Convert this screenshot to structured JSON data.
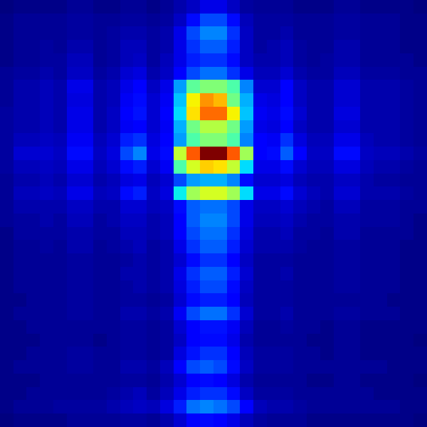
{
  "chart_data": {
    "type": "heatmap",
    "tick_labels": false,
    "cells": [
      [
        3,
        4,
        4,
        4,
        4,
        5,
        5,
        4,
        4,
        5,
        5,
        4,
        5,
        7,
        9,
        12,
        12,
        9,
        6,
        5,
        5,
        5,
        4,
        4,
        4,
        5,
        5,
        4,
        4,
        4,
        4,
        3
      ],
      [
        4,
        5,
        5,
        5,
        5,
        6,
        6,
        5,
        5,
        6,
        6,
        5,
        6,
        9,
        16,
        22,
        22,
        16,
        8,
        6,
        6,
        6,
        5,
        5,
        5,
        6,
        6,
        5,
        5,
        5,
        4,
        4
      ],
      [
        4,
        5,
        5,
        5,
        5,
        6,
        6,
        5,
        6,
        7,
        7,
        6,
        7,
        12,
        22,
        28,
        28,
        20,
        9,
        6,
        6,
        7,
        5,
        5,
        5,
        6,
        6,
        5,
        5,
        5,
        4,
        4
      ],
      [
        4,
        5,
        5,
        6,
        5,
        7,
        7,
        5,
        6,
        8,
        8,
        6,
        7,
        12,
        20,
        24,
        24,
        18,
        9,
        6,
        7,
        8,
        6,
        5,
        5,
        7,
        7,
        5,
        5,
        5,
        4,
        4
      ],
      [
        4,
        5,
        5,
        6,
        6,
        8,
        8,
        5,
        6,
        8,
        9,
        6,
        8,
        12,
        18,
        20,
        20,
        16,
        9,
        7,
        7,
        8,
        6,
        5,
        6,
        7,
        7,
        5,
        5,
        5,
        5,
        4
      ],
      [
        5,
        6,
        6,
        7,
        6,
        9,
        9,
        6,
        7,
        10,
        11,
        7,
        9,
        14,
        22,
        26,
        26,
        20,
        12,
        8,
        8,
        10,
        7,
        6,
        6,
        8,
        8,
        6,
        6,
        6,
        5,
        5
      ],
      [
        5,
        7,
        7,
        8,
        7,
        12,
        12,
        7,
        8,
        12,
        14,
        9,
        12,
        30,
        48,
        52,
        52,
        46,
        28,
        10,
        10,
        14,
        9,
        7,
        7,
        10,
        10,
        7,
        7,
        7,
        6,
        5
      ],
      [
        5,
        7,
        7,
        8,
        7,
        11,
        11,
        7,
        8,
        13,
        16,
        10,
        13,
        34,
        66,
        76,
        72,
        50,
        32,
        12,
        11,
        15,
        9,
        7,
        7,
        10,
        10,
        7,
        7,
        7,
        6,
        5
      ],
      [
        6,
        7,
        7,
        8,
        7,
        12,
        12,
        7,
        9,
        14,
        17,
        10,
        14,
        36,
        68,
        80,
        80,
        66,
        34,
        13,
        12,
        16,
        10,
        7,
        7,
        11,
        11,
        7,
        7,
        7,
        6,
        5
      ],
      [
        6,
        7,
        7,
        8,
        7,
        12,
        12,
        7,
        9,
        13,
        15,
        10,
        13,
        32,
        50,
        58,
        58,
        50,
        30,
        12,
        11,
        14,
        9,
        7,
        7,
        10,
        10,
        7,
        7,
        7,
        6,
        5
      ],
      [
        6,
        8,
        8,
        9,
        8,
        13,
        13,
        8,
        10,
        18,
        20,
        11,
        14,
        30,
        46,
        52,
        52,
        46,
        28,
        14,
        13,
        20,
        11,
        8,
        8,
        12,
        12,
        8,
        7,
        7,
        6,
        5
      ],
      [
        6,
        10,
        10,
        10,
        9,
        16,
        16,
        9,
        11,
        22,
        28,
        12,
        16,
        60,
        82,
        100,
        100,
        82,
        56,
        14,
        16,
        24,
        14,
        9,
        9,
        16,
        16,
        9,
        8,
        8,
        7,
        6
      ],
      [
        6,
        8,
        8,
        9,
        8,
        12,
        12,
        8,
        10,
        16,
        18,
        10,
        13,
        46,
        62,
        70,
        68,
        60,
        36,
        12,
        12,
        16,
        10,
        8,
        8,
        11,
        11,
        8,
        7,
        7,
        6,
        5
      ],
      [
        5,
        7,
        7,
        8,
        7,
        10,
        10,
        7,
        8,
        11,
        12,
        8,
        10,
        22,
        30,
        32,
        32,
        28,
        16,
        10,
        10,
        11,
        8,
        7,
        7,
        9,
        9,
        7,
        6,
        6,
        5,
        5
      ],
      [
        5,
        8,
        8,
        9,
        8,
        12,
        12,
        8,
        9,
        16,
        18,
        9,
        11,
        38,
        56,
        62,
        62,
        56,
        36,
        12,
        12,
        16,
        10,
        8,
        7,
        10,
        10,
        7,
        7,
        7,
        6,
        5
      ],
      [
        5,
        7,
        7,
        7,
        7,
        9,
        9,
        7,
        7,
        10,
        10,
        8,
        9,
        16,
        24,
        26,
        26,
        22,
        12,
        9,
        9,
        10,
        8,
        7,
        6,
        8,
        8,
        6,
        6,
        6,
        5,
        5
      ],
      [
        5,
        6,
        6,
        7,
        6,
        8,
        8,
        6,
        7,
        9,
        9,
        7,
        8,
        14,
        24,
        28,
        28,
        22,
        12,
        8,
        8,
        9,
        7,
        6,
        6,
        7,
        7,
        6,
        6,
        6,
        5,
        4
      ],
      [
        4,
        6,
        6,
        6,
        6,
        7,
        7,
        6,
        6,
        8,
        8,
        7,
        8,
        14,
        22,
        26,
        26,
        20,
        11,
        7,
        7,
        8,
        6,
        6,
        5,
        7,
        7,
        5,
        5,
        5,
        5,
        4
      ],
      [
        4,
        5,
        5,
        6,
        5,
        7,
        7,
        5,
        6,
        7,
        8,
        6,
        7,
        12,
        20,
        24,
        24,
        18,
        10,
        7,
        7,
        7,
        6,
        5,
        5,
        6,
        6,
        5,
        5,
        5,
        4,
        4
      ],
      [
        4,
        5,
        5,
        5,
        5,
        6,
        6,
        5,
        5,
        6,
        7,
        6,
        7,
        10,
        16,
        20,
        20,
        15,
        9,
        6,
        6,
        6,
        5,
        5,
        5,
        6,
        6,
        5,
        5,
        5,
        4,
        4
      ],
      [
        4,
        5,
        5,
        5,
        5,
        6,
        6,
        5,
        5,
        7,
        7,
        6,
        7,
        12,
        20,
        24,
        24,
        18,
        10,
        6,
        6,
        7,
        5,
        5,
        5,
        6,
        6,
        5,
        5,
        5,
        4,
        4
      ],
      [
        4,
        5,
        5,
        5,
        5,
        6,
        6,
        5,
        5,
        6,
        7,
        6,
        7,
        11,
        18,
        22,
        22,
        16,
        9,
        6,
        6,
        6,
        5,
        5,
        5,
        6,
        6,
        5,
        5,
        5,
        4,
        4
      ],
      [
        4,
        4,
        5,
        5,
        5,
        6,
        6,
        5,
        5,
        6,
        6,
        5,
        6,
        10,
        16,
        18,
        18,
        14,
        8,
        6,
        6,
        6,
        5,
        5,
        5,
        5,
        5,
        5,
        5,
        4,
        4,
        4
      ],
      [
        4,
        5,
        5,
        5,
        5,
        6,
        6,
        5,
        5,
        7,
        7,
        6,
        7,
        13,
        22,
        26,
        26,
        20,
        10,
        6,
        6,
        7,
        5,
        5,
        5,
        6,
        6,
        5,
        5,
        5,
        4,
        4
      ],
      [
        4,
        4,
        5,
        5,
        5,
        5,
        5,
        5,
        5,
        6,
        6,
        5,
        6,
        10,
        15,
        17,
        17,
        13,
        8,
        5,
        5,
        6,
        5,
        5,
        4,
        5,
        5,
        4,
        4,
        4,
        4,
        4
      ],
      [
        4,
        4,
        4,
        5,
        5,
        5,
        5,
        4,
        5,
        6,
        6,
        5,
        6,
        9,
        14,
        16,
        16,
        12,
        7,
        5,
        5,
        5,
        5,
        4,
        4,
        5,
        5,
        4,
        4,
        4,
        4,
        3
      ],
      [
        4,
        4,
        5,
        5,
        5,
        6,
        6,
        5,
        5,
        6,
        6,
        5,
        6,
        11,
        17,
        20,
        20,
        15,
        8,
        6,
        6,
        6,
        5,
        5,
        4,
        5,
        5,
        4,
        4,
        4,
        4,
        4
      ],
      [
        4,
        5,
        5,
        5,
        5,
        6,
        6,
        5,
        5,
        7,
        7,
        6,
        8,
        14,
        22,
        24,
        22,
        16,
        9,
        6,
        6,
        6,
        5,
        5,
        5,
        5,
        5,
        5,
        5,
        4,
        4,
        4
      ],
      [
        4,
        4,
        4,
        5,
        5,
        5,
        5,
        5,
        5,
        6,
        6,
        5,
        7,
        10,
        14,
        16,
        15,
        11,
        7,
        5,
        5,
        5,
        5,
        4,
        4,
        5,
        5,
        4,
        4,
        4,
        4,
        3
      ],
      [
        4,
        4,
        5,
        5,
        5,
        5,
        5,
        5,
        6,
        7,
        8,
        6,
        8,
        12,
        18,
        20,
        20,
        16,
        9,
        6,
        6,
        6,
        5,
        5,
        5,
        5,
        5,
        5,
        4,
        4,
        4,
        4
      ],
      [
        4,
        5,
        5,
        5,
        6,
        6,
        6,
        6,
        7,
        8,
        9,
        8,
        11,
        18,
        26,
        28,
        26,
        22,
        14,
        8,
        7,
        7,
        6,
        5,
        5,
        5,
        5,
        5,
        5,
        5,
        4,
        4
      ],
      [
        3,
        4,
        4,
        4,
        4,
        5,
        5,
        5,
        5,
        6,
        6,
        5,
        7,
        10,
        14,
        16,
        15,
        12,
        8,
        6,
        5,
        5,
        5,
        4,
        4,
        4,
        4,
        4,
        4,
        4,
        4,
        3
      ]
    ]
  }
}
